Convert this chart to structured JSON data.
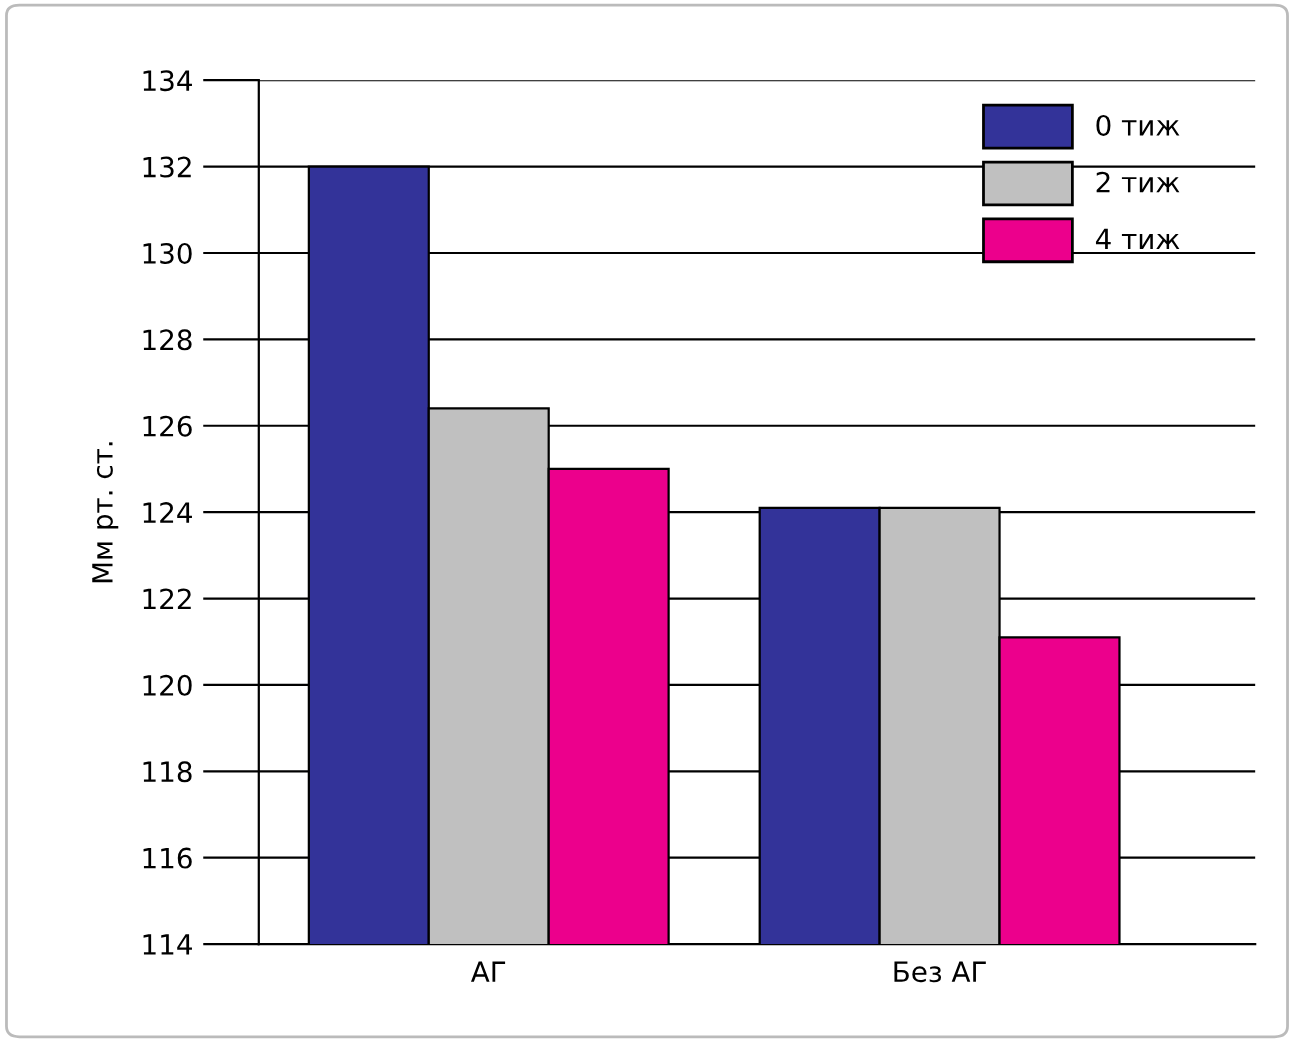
{
  "chart_data": {
    "type": "bar",
    "ylabel": "Мм рт. ст.",
    "categories": [
      "АГ",
      "Без АГ"
    ],
    "series": [
      {
        "name": "0 тиж",
        "color": "#333399",
        "values": [
          132,
          124.1
        ]
      },
      {
        "name": "2 тиж",
        "color": "#c0c0c0",
        "values": [
          126.4,
          124.1
        ]
      },
      {
        "name": "4 тиж",
        "color": "#ec008c",
        "values": [
          125,
          121.1
        ]
      }
    ],
    "ylim": [
      114,
      134
    ],
    "yticks": [
      114,
      116,
      118,
      120,
      122,
      124,
      126,
      128,
      130,
      132,
      134
    ],
    "grid": "y",
    "legend": "top right"
  }
}
